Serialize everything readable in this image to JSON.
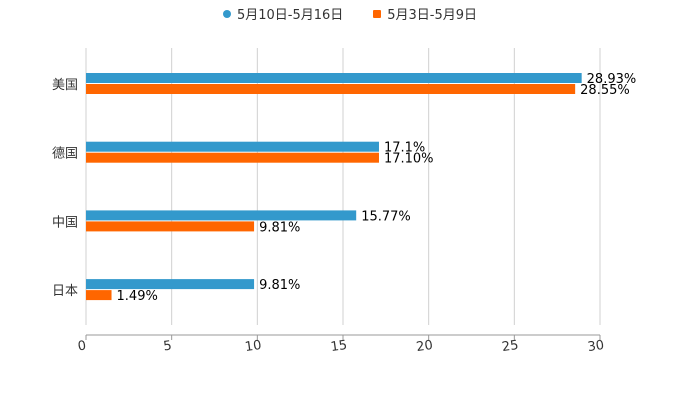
{
  "chart_data": {
    "type": "bar",
    "orientation": "horizontal",
    "title": "",
    "xlabel": "",
    "ylabel": "",
    "categories": [
      "美国",
      "德国",
      "中国",
      "日本"
    ],
    "series": [
      {
        "name": "5月10日-5月16日",
        "color": "#3399cc",
        "values": [
          28.93,
          17.1,
          15.77,
          9.81
        ],
        "labels": [
          "28.93%",
          "17.1%",
          "15.77%",
          "9.81%"
        ]
      },
      {
        "name": "5月3日-5月9日",
        "color": "#ff6600",
        "values": [
          28.55,
          17.1,
          9.81,
          1.49
        ],
        "labels": [
          "28.55%",
          "17.10%",
          "9.81%",
          "1.49%"
        ]
      }
    ],
    "xlim": [
      0,
      30
    ],
    "xticks": [
      "0",
      "5",
      "10",
      "15",
      "20",
      "25",
      "30"
    ],
    "grid": true,
    "legend_position": "top-center"
  }
}
